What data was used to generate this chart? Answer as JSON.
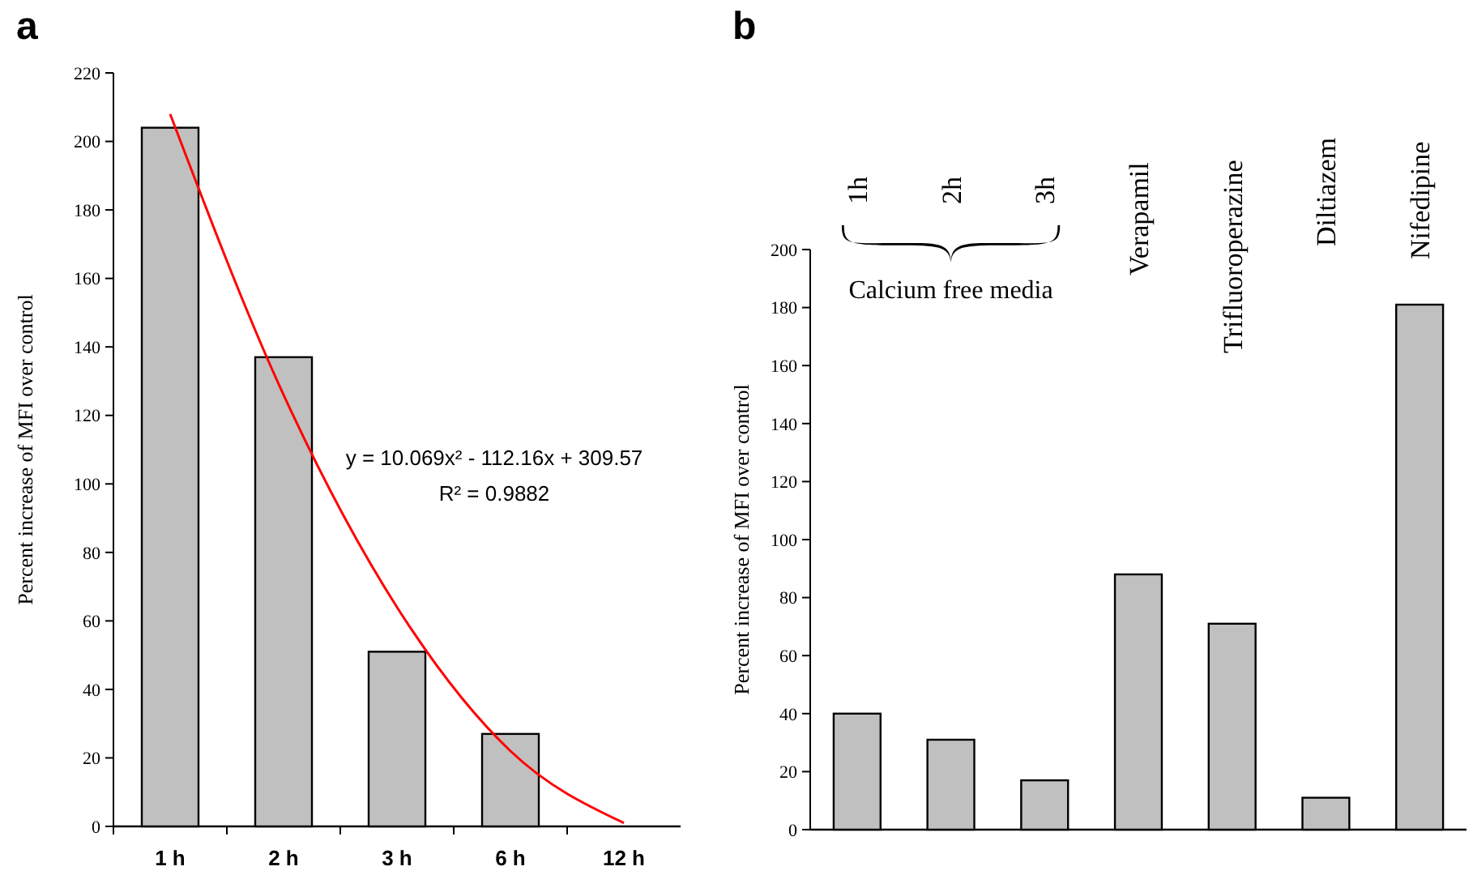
{
  "chart_data": [
    {
      "type": "bar",
      "title": "a",
      "ylabel": "Percent increase of MFI over control",
      "categories": [
        "1 h",
        "2 h",
        "3 h",
        "6 h",
        "12 h"
      ],
      "series": [
        {
          "color": "#c0c0c0",
          "values": [
            204,
            137,
            51,
            27,
            0
          ]
        },
        {
          "type": "line",
          "color": "#ff0000",
          "values": [
            208,
            126,
            64,
            22,
            1
          ]
        }
      ],
      "ylim": [
        0,
        220
      ],
      "yticks": [
        0,
        20,
        40,
        60,
        80,
        100,
        120,
        140,
        160,
        180,
        200,
        220
      ],
      "annotations": [
        "y = 10.069x² - 112.16x + 309.57",
        "R² = 0.9882"
      ]
    },
    {
      "type": "bar",
      "title": "b",
      "ylabel": "Percent increase of MFI over control",
      "categories": [
        "1h",
        "2h",
        "3h",
        "Verapamil",
        "Trifluoroperazine",
        "Diltiazem",
        "Nifedipine"
      ],
      "series": [
        {
          "color": "#c0c0c0",
          "values": [
            40,
            31,
            17,
            88,
            71,
            11,
            181
          ]
        }
      ],
      "ylim": [
        0,
        200
      ],
      "yticks": [
        0,
        20,
        40,
        60,
        80,
        100,
        120,
        140,
        160,
        180,
        200
      ],
      "annotations": [
        "Calcium free media"
      ]
    }
  ]
}
